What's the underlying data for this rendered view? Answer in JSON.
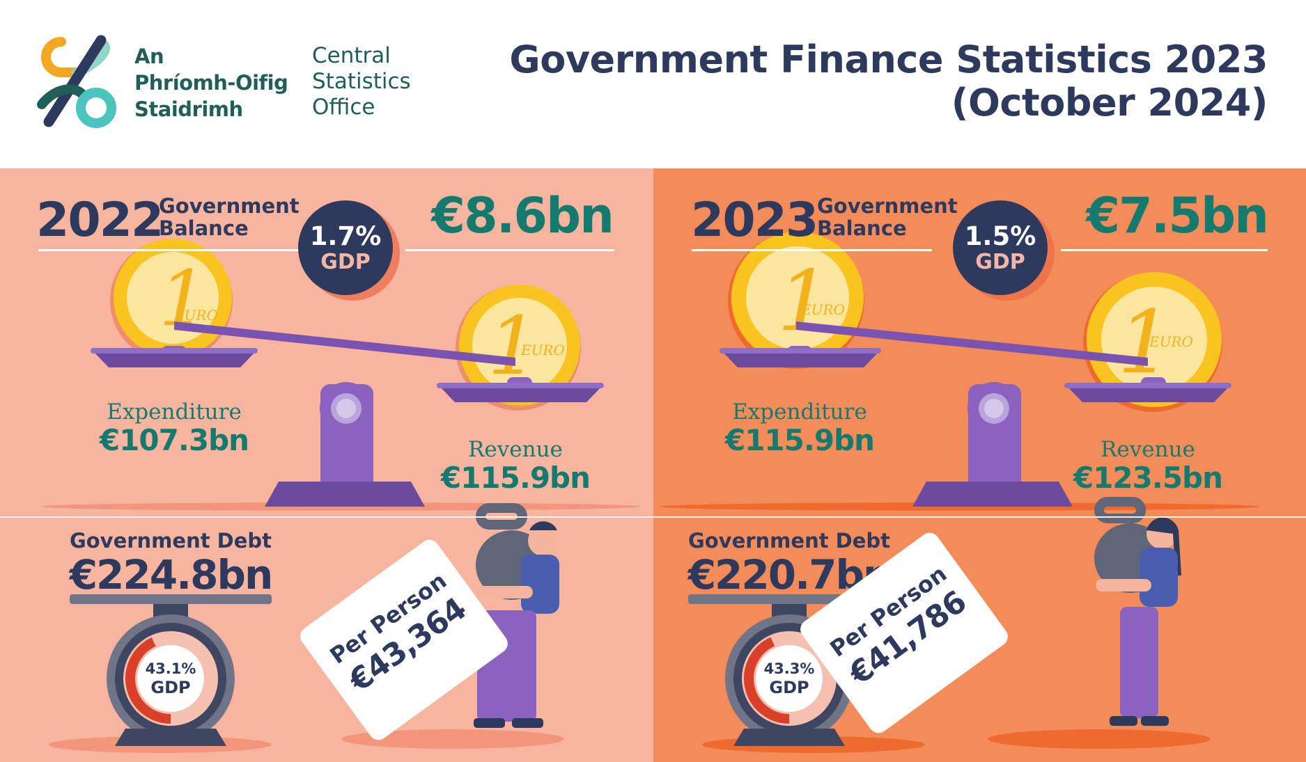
{
  "header": {
    "logo_irish": [
      "An",
      "Phríomh-Oifig",
      "Staidrimh"
    ],
    "logo_english": [
      "Central",
      "Statistics",
      "Office"
    ],
    "title_line1": "Government Finance Statistics 2023",
    "title_line2": "(October 2024)"
  },
  "panels": [
    {
      "year": "2022",
      "balance_label": [
        "Government",
        "Balance"
      ],
      "balance_value": "€8.6bn",
      "gdp_pct": "1.7%",
      "gdp_label": "GDP",
      "expenditure_label": "Expenditure",
      "expenditure_value": "€107.3bn",
      "revenue_label": "Revenue",
      "revenue_value": "€115.9bn",
      "debt_label": "Government Debt",
      "debt_value": "€224.8bn",
      "debt_gdp_pct": "43.1%",
      "debt_gdp_label": "GDP",
      "debt_gdp_fraction": 0.431,
      "per_person_label": "Per Person",
      "per_person_value": "€43,364",
      "coin_text": "EURO"
    },
    {
      "year": "2023",
      "balance_label": [
        "Government",
        "Balance"
      ],
      "balance_value": "€7.5bn",
      "gdp_pct": "1.5%",
      "gdp_label": "GDP",
      "expenditure_label": "Expenditure",
      "expenditure_value": "€115.9bn",
      "revenue_label": "Revenue",
      "revenue_value": "€123.5bn",
      "debt_label": "Government Debt",
      "debt_value": "€220.7bn",
      "debt_gdp_pct": "43.3%",
      "debt_gdp_label": "GDP",
      "debt_gdp_fraction": 0.433,
      "per_person_label": "Per Person",
      "per_person_value": "€41,786",
      "coin_text": "EURO"
    }
  ],
  "colors": {
    "navy": "#2d3a5e",
    "teal": "#157a6e",
    "panel_left": "#f7b5a0",
    "panel_right": "#f48c5a",
    "coin_gold": "#f9c320",
    "scale_purple": "#6c4a9e"
  }
}
